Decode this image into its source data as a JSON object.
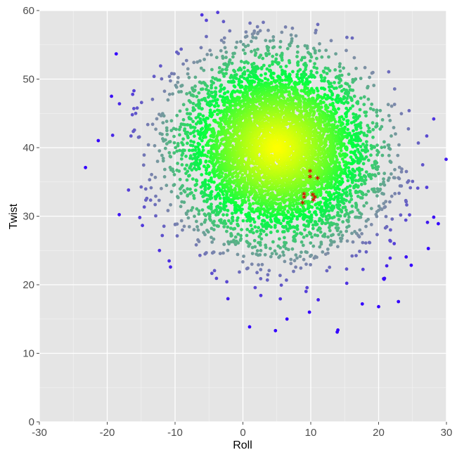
{
  "chart_data": {
    "type": "scatter",
    "title": "",
    "xlabel": "Roll",
    "ylabel": "Twist",
    "xlim": [
      -30,
      30
    ],
    "ylim": [
      0,
      60
    ],
    "x_ticks": [
      "-30",
      "-20",
      "-10",
      "0",
      "10",
      "20",
      "30"
    ],
    "y_ticks": [
      "0",
      "10",
      "20",
      "30",
      "40",
      "50",
      "60"
    ],
    "grid": true,
    "legend": "none",
    "colors": {
      "panel": "#e5e5e5",
      "gridline": "#ffffff",
      "center": "#ffff00",
      "mid": "#00ff40",
      "edge": "#7f8fa6",
      "outlier": "#3300ff",
      "highlight": "#e00000"
    },
    "cloud_center": [
      5,
      40
    ],
    "cloud_sd": [
      7,
      6.5
    ],
    "outlier_points": [
      {
        "x": -23.2,
        "y": 37.1
      },
      {
        "x": -19.2,
        "y": 41.8
      },
      {
        "x": -18.2,
        "y": 46.4
      },
      {
        "x": -16.3,
        "y": 44.8
      },
      {
        "x": -15.2,
        "y": 29.8
      },
      {
        "x": -12.3,
        "y": 25.0
      },
      {
        "x": -10.5,
        "y": 50.8
      },
      {
        "x": -8.1,
        "y": 51.5
      },
      {
        "x": -3.0,
        "y": 53.3
      },
      {
        "x": 4.8,
        "y": 13.3
      },
      {
        "x": 6.5,
        "y": 15.0
      },
      {
        "x": 9.8,
        "y": 16.0
      },
      {
        "x": 13.9,
        "y": 13.1
      },
      {
        "x": 14.0,
        "y": 13.4
      },
      {
        "x": 20.0,
        "y": 16.8
      },
      {
        "x": 24.5,
        "y": 45.4
      },
      {
        "x": 26.5,
        "y": 37.5
      },
      {
        "x": 27.1,
        "y": 34.2
      },
      {
        "x": 27.2,
        "y": 29.1
      },
      {
        "x": 28.8,
        "y": 28.9
      },
      {
        "x": 22.3,
        "y": 26.0
      },
      {
        "x": 20.8,
        "y": 20.8
      },
      {
        "x": 17.6,
        "y": 17.2
      },
      {
        "x": 11.1,
        "y": 17.8
      }
    ],
    "highlight_points": [
      {
        "x": 9.9,
        "y": 36.4
      },
      {
        "x": 9.9,
        "y": 35.6
      },
      {
        "x": 11.0,
        "y": 35.4
      },
      {
        "x": 9.0,
        "y": 33.1
      },
      {
        "x": 9.0,
        "y": 32.6
      },
      {
        "x": 8.8,
        "y": 31.8
      },
      {
        "x": 10.3,
        "y": 33.0
      },
      {
        "x": 10.6,
        "y": 32.6
      },
      {
        "x": 10.4,
        "y": 32.2
      }
    ]
  }
}
